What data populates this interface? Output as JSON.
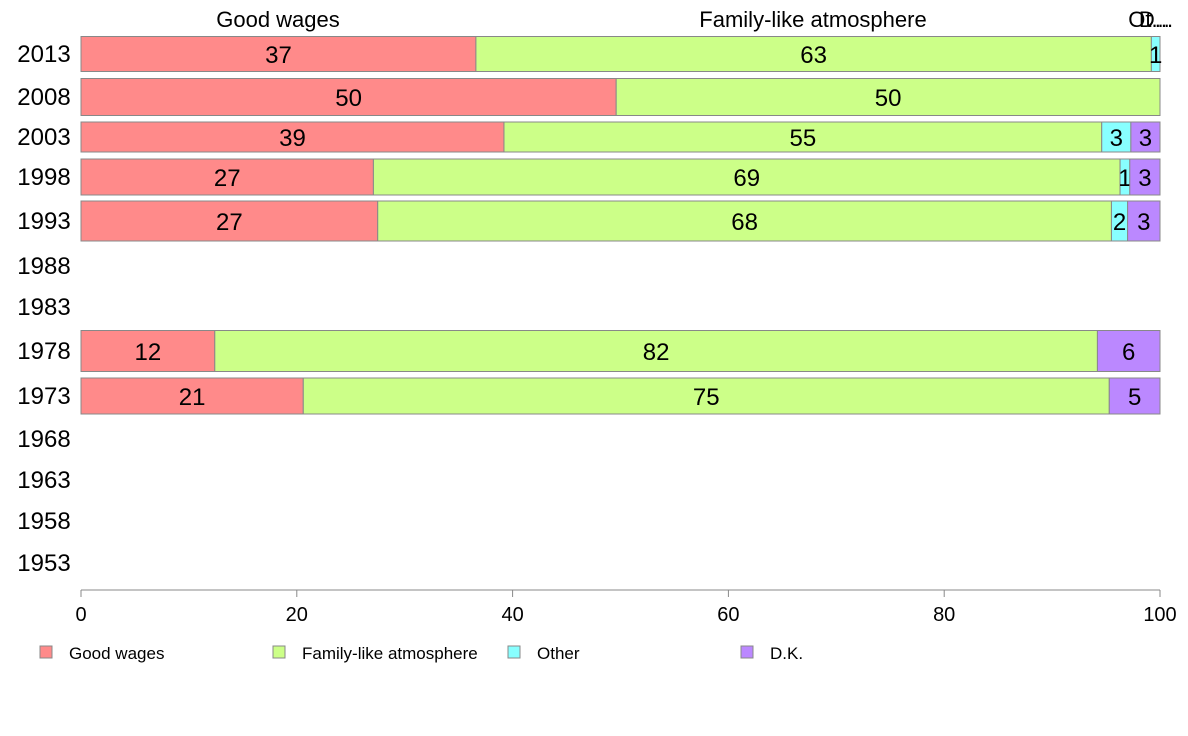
{
  "chart_data": {
    "type": "bar",
    "orientation": "horizontal",
    "stacked": true,
    "categories": [
      "2013",
      "2008",
      "2003",
      "1998",
      "1993",
      "1988",
      "1983",
      "1978",
      "1973",
      "1968",
      "1963",
      "1958",
      "1953"
    ],
    "series": [
      {
        "name": "Good wages",
        "color": "#ff8a8a",
        "values": [
          36.6,
          49.6,
          39.2,
          27.1,
          27.5,
          null,
          null,
          12.4,
          20.6,
          null,
          null,
          null,
          null
        ],
        "labels": [
          "37",
          "50",
          "39",
          "27",
          "27",
          "",
          "",
          "12",
          "21",
          "",
          "",
          "",
          ""
        ]
      },
      {
        "name": "Family-like atmosphere",
        "color": "#ccff88",
        "values": [
          62.6,
          50.4,
          55.4,
          69.2,
          68.0,
          null,
          null,
          81.8,
          74.7,
          null,
          null,
          null,
          null
        ],
        "labels": [
          "63",
          "50",
          "55",
          "69",
          "68",
          "",
          "",
          "82",
          "75",
          "",
          "",
          "",
          ""
        ]
      },
      {
        "name": "Other",
        "color": "#88ffff",
        "values": [
          0.8,
          0,
          2.7,
          0.9,
          1.5,
          null,
          null,
          0,
          0,
          null,
          null,
          null,
          null
        ],
        "labels": [
          "1",
          "",
          "3",
          "1",
          "2",
          "",
          "",
          "",
          "",
          "",
          "",
          "",
          ""
        ]
      },
      {
        "name": "D.K.",
        "color": "#bb88ff",
        "values": [
          0,
          0,
          2.7,
          2.8,
          3.0,
          null,
          null,
          5.8,
          4.7,
          null,
          null,
          null,
          null
        ],
        "labels": [
          "",
          "",
          "3",
          "3",
          "3",
          "",
          "",
          "6",
          "5",
          "",
          "",
          "",
          ""
        ]
      }
    ],
    "top_labels": [
      "Good wages",
      "Family-like atmosphere",
      "Ot...",
      "D..."
    ],
    "xlim": [
      0,
      100
    ],
    "xticks": [
      "0",
      "20",
      "40",
      "60",
      "80",
      "100"
    ],
    "title": "",
    "xlabel": "",
    "ylabel": "",
    "grid": false,
    "legend_position": "bottom"
  }
}
